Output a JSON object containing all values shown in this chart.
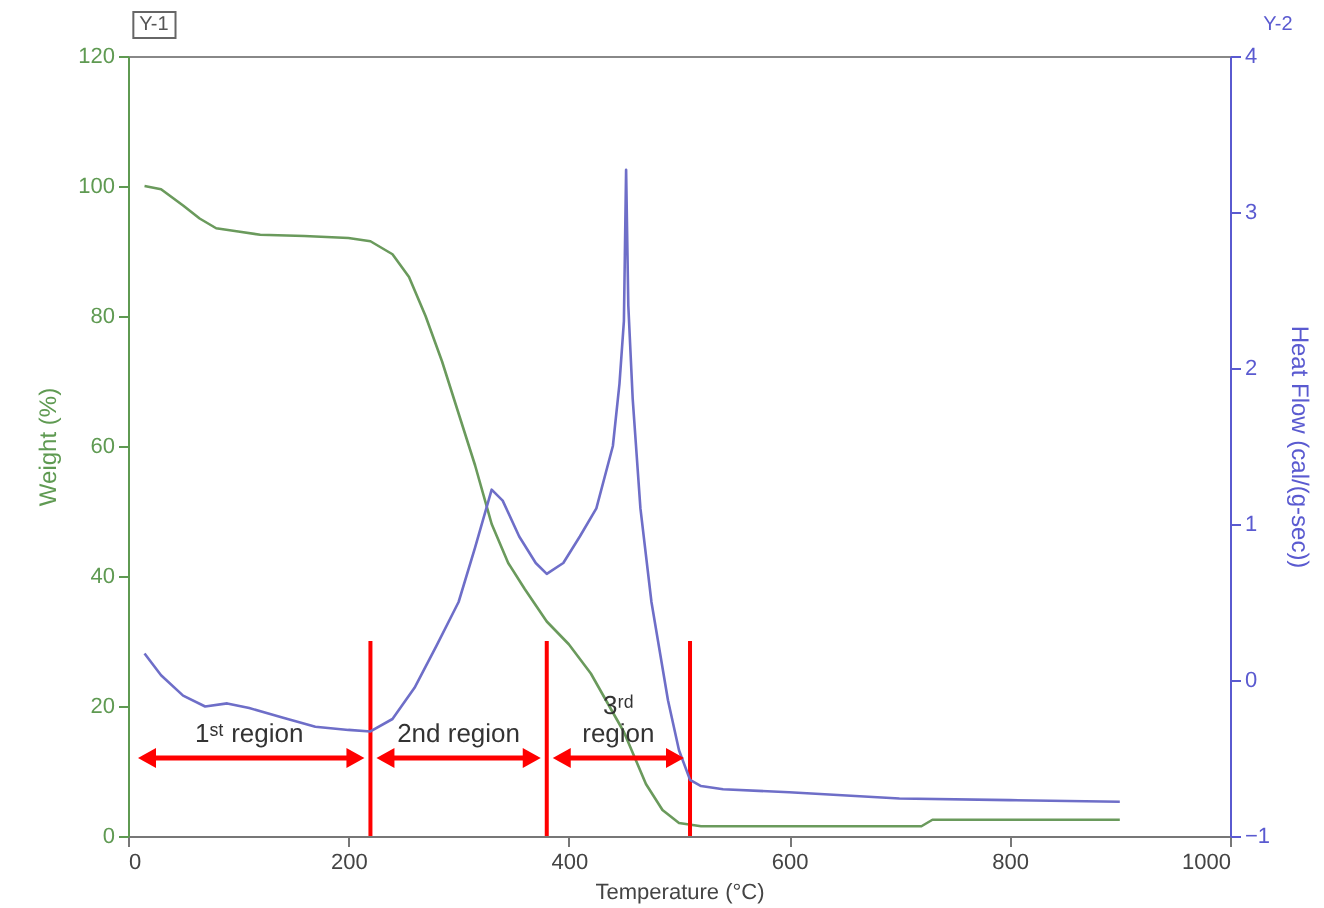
{
  "chart_data": {
    "type": "line",
    "xlabel": "Temperature (°C)",
    "ylabel": "Weight (%)",
    "y2label": "Heat Flow (cal/(g-sec))",
    "xlim": [
      0,
      1000
    ],
    "xticks": [
      0,
      200,
      400,
      600,
      800,
      1000
    ],
    "ylim": [
      0,
      120
    ],
    "yticks": [
      0,
      20,
      40,
      60,
      80,
      100,
      120
    ],
    "y2lim": [
      -1,
      4
    ],
    "y2ticks": [
      -1,
      0,
      1,
      2,
      3,
      4
    ],
    "series": [
      {
        "color": "#6a9a5c",
        "x": [
          15,
          30,
          50,
          65,
          80,
          100,
          120,
          160,
          200,
          220,
          240,
          255,
          270,
          285,
          300,
          315,
          330,
          345,
          360,
          380,
          400,
          420,
          440,
          450,
          460,
          470,
          485,
          500,
          520,
          550,
          650,
          720,
          730,
          800,
          900
        ],
        "values": [
          100,
          99.5,
          97,
          95,
          93.5,
          93,
          92.5,
          92.3,
          92,
          91.5,
          89.5,
          86,
          80,
          73,
          65,
          57,
          48,
          42,
          38,
          33,
          29.5,
          25,
          19,
          16,
          12,
          8,
          4,
          2,
          1.5,
          1.5,
          1.5,
          1.5,
          2.5,
          2.5,
          2.5
        ]
      },
      {
        "color": "#6e6ec8",
        "axis": "y2",
        "x": [
          15,
          30,
          50,
          70,
          90,
          110,
          140,
          170,
          200,
          220,
          240,
          260,
          280,
          300,
          315,
          330,
          340,
          355,
          370,
          380,
          395,
          410,
          425,
          440,
          446,
          450,
          452,
          454,
          458,
          465,
          475,
          490,
          500,
          510,
          520,
          540,
          600,
          700,
          800,
          900
        ],
        "values": [
          0.17,
          0.03,
          -0.1,
          -0.17,
          -0.15,
          -0.18,
          -0.24,
          -0.3,
          -0.32,
          -0.33,
          -0.25,
          -0.05,
          0.22,
          0.5,
          0.85,
          1.22,
          1.15,
          0.92,
          0.75,
          0.68,
          0.75,
          0.92,
          1.1,
          1.5,
          1.9,
          2.3,
          3.27,
          2.4,
          1.8,
          1.1,
          0.5,
          -0.13,
          -0.45,
          -0.64,
          -0.68,
          -0.7,
          -0.72,
          -0.76,
          -0.77,
          -0.78
        ]
      }
    ],
    "ref_lines": [
      {
        "axis": "x",
        "value": 220,
        "color": "#ff0000"
      },
      {
        "axis": "x",
        "value": 380,
        "color": "#ff0000"
      },
      {
        "axis": "x",
        "value": 510,
        "color": "#ff0000"
      }
    ],
    "annotations": [
      "Y-1",
      "Y-2",
      "1ˢᵗ region",
      "2nd region",
      "3ʳᵈ\nregion"
    ],
    "grid": false,
    "line_style": "solid",
    "marker": "none"
  }
}
